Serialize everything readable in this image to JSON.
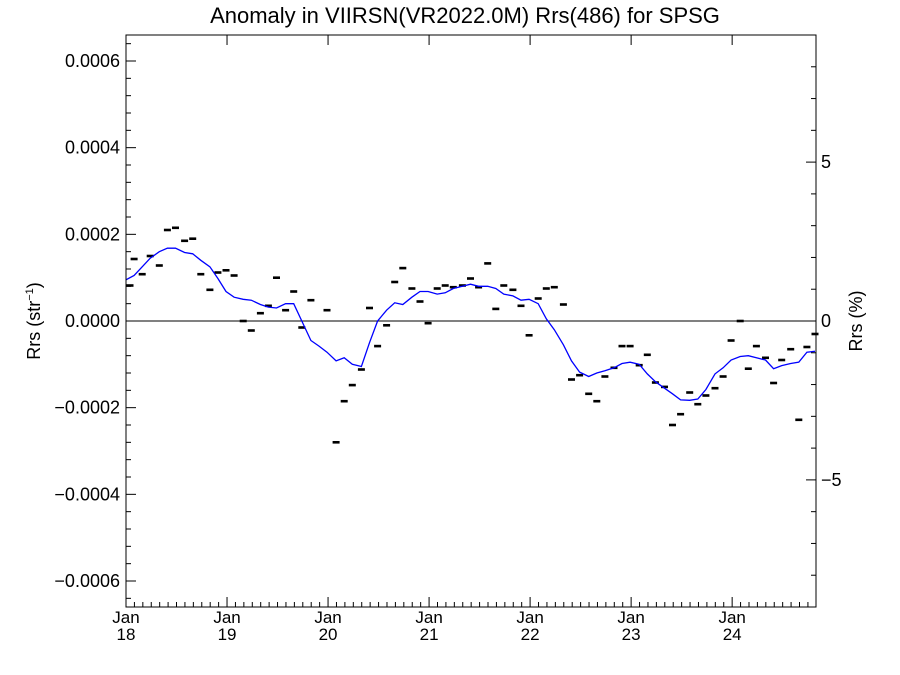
{
  "chart_data": {
    "type": "scatter",
    "title": "Anomaly in VIIRSN(VR2022.0M) Rrs(486) for SPSG",
    "ylabel_main": "Rrs (str",
    "ylabel_sup": "−1",
    "ylabel_close": ")",
    "y2label": "Rrs (%)",
    "ylim": [
      -0.00066,
      0.00066
    ],
    "y2lim": [
      -9.0,
      9.0
    ],
    "xlim": [
      2018.0,
      2024.83
    ],
    "yticks": [
      {
        "value": -0.0006,
        "label": "−0.0006"
      },
      {
        "value": -0.0004,
        "label": "−0.0004"
      },
      {
        "value": -0.0002,
        "label": "−0.0002"
      },
      {
        "value": 0.0,
        "label": "0.0000"
      },
      {
        "value": 0.0002,
        "label": "0.0002"
      },
      {
        "value": 0.0004,
        "label": "0.0004"
      },
      {
        "value": 0.0006,
        "label": "0.0006"
      }
    ],
    "y2ticks": [
      {
        "value": -5,
        "label": "−5"
      },
      {
        "value": 0,
        "label": "0"
      },
      {
        "value": 5,
        "label": "5"
      }
    ],
    "xticks": [
      {
        "value": 2018,
        "month": "Jan",
        "year": "18"
      },
      {
        "value": 2019,
        "month": "Jan",
        "year": "19"
      },
      {
        "value": 2020,
        "month": "Jan",
        "year": "20"
      },
      {
        "value": 2021,
        "month": "Jan",
        "year": "21"
      },
      {
        "value": 2022,
        "month": "Jan",
        "year": "22"
      },
      {
        "value": 2023,
        "month": "Jan",
        "year": "23"
      },
      {
        "value": 2024,
        "month": "Jan",
        "year": "24"
      }
    ],
    "zero_line": 0,
    "series": [
      {
        "kind": "monthly",
        "color": "#000000",
        "points": [
          [
            2018.04,
            8.2e-05
          ],
          [
            2018.08,
            0.000143
          ],
          [
            2018.16,
            0.000108
          ],
          [
            2018.24,
            0.00015
          ],
          [
            2018.33,
            0.000128
          ],
          [
            2018.41,
            0.00021
          ],
          [
            2018.49,
            0.000215
          ],
          [
            2018.58,
            0.000185
          ],
          [
            2018.66,
            0.00019
          ],
          [
            2018.74,
            0.000108
          ],
          [
            2018.83,
            7.2e-05
          ],
          [
            2018.91,
            0.000112
          ],
          [
            2018.99,
            0.000117
          ],
          [
            2019.07,
            0.000105
          ],
          [
            2019.16,
            0.0
          ],
          [
            2019.24,
            -2.2e-05
          ],
          [
            2019.33,
            1.8e-05
          ],
          [
            2019.41,
            3.5e-05
          ],
          [
            2019.49,
            0.0001
          ],
          [
            2019.58,
            2.5e-05
          ],
          [
            2019.66,
            6.8e-05
          ],
          [
            2019.74,
            -1.5e-05
          ],
          [
            2019.83,
            4.8e-05
          ],
          [
            2019.99,
            2.5e-05
          ],
          [
            2020.08,
            -0.00028
          ],
          [
            2020.16,
            -0.000185
          ],
          [
            2020.24,
            -0.000148
          ],
          [
            2020.33,
            -0.000112
          ],
          [
            2020.41,
            3e-05
          ],
          [
            2020.49,
            -5.8e-05
          ],
          [
            2020.58,
            -1e-05
          ],
          [
            2020.66,
            9e-05
          ],
          [
            2020.74,
            0.000122
          ],
          [
            2020.83,
            7.5e-05
          ],
          [
            2020.91,
            4.5e-05
          ],
          [
            2020.99,
            -5e-06
          ],
          [
            2021.08,
            7.5e-05
          ],
          [
            2021.16,
            8.2e-05
          ],
          [
            2021.24,
            7.8e-05
          ],
          [
            2021.33,
            8.2e-05
          ],
          [
            2021.41,
            9.8e-05
          ],
          [
            2021.49,
            7.8e-05
          ],
          [
            2021.58,
            0.000133
          ],
          [
            2021.66,
            2.8e-05
          ],
          [
            2021.74,
            8.2e-05
          ],
          [
            2021.83,
            7.2e-05
          ],
          [
            2021.91,
            3.5e-05
          ],
          [
            2021.99,
            -3.3e-05
          ],
          [
            2022.08,
            5.2e-05
          ],
          [
            2022.16,
            7.5e-05
          ],
          [
            2022.24,
            7.8e-05
          ],
          [
            2022.33,
            3.8e-05
          ],
          [
            2022.41,
            -0.000135
          ],
          [
            2022.49,
            -0.000125
          ],
          [
            2022.58,
            -0.000168
          ],
          [
            2022.66,
            -0.000185
          ],
          [
            2022.74,
            -0.000128
          ],
          [
            2022.83,
            -0.000108
          ],
          [
            2022.91,
            -5.8e-05
          ],
          [
            2022.99,
            -5.8e-05
          ],
          [
            2023.08,
            -0.000102
          ],
          [
            2023.16,
            -7.8e-05
          ],
          [
            2023.24,
            -0.000142
          ],
          [
            2023.33,
            -0.000152
          ],
          [
            2023.41,
            -0.00024
          ],
          [
            2023.49,
            -0.000215
          ],
          [
            2023.58,
            -0.000165
          ],
          [
            2023.66,
            -0.000192
          ],
          [
            2023.74,
            -0.000172
          ],
          [
            2023.83,
            -0.000155
          ],
          [
            2023.91,
            -0.000128
          ],
          [
            2023.99,
            -4.5e-05
          ],
          [
            2024.08,
            0.0
          ],
          [
            2024.16,
            -0.00011
          ],
          [
            2024.24,
            -5.8e-05
          ],
          [
            2024.33,
            -8.5e-05
          ],
          [
            2024.41,
            -0.000143
          ],
          [
            2024.49,
            -9e-05
          ],
          [
            2024.58,
            -6.5e-05
          ],
          [
            2024.66,
            -0.000228
          ],
          [
            2024.74,
            -6e-05
          ],
          [
            2024.82,
            -3e-05
          ]
        ]
      },
      {
        "kind": "running-mean",
        "color": "#0000ff",
        "points": [
          [
            2018.0,
            9.5e-05
          ],
          [
            2018.08,
            0.000105
          ],
          [
            2018.16,
            0.000125
          ],
          [
            2018.24,
            0.000145
          ],
          [
            2018.33,
            0.00016
          ],
          [
            2018.41,
            0.000168
          ],
          [
            2018.49,
            0.000168
          ],
          [
            2018.58,
            0.000158
          ],
          [
            2018.66,
            0.000155
          ],
          [
            2018.74,
            0.00014
          ],
          [
            2018.83,
            0.000125
          ],
          [
            2018.91,
            9.8e-05
          ],
          [
            2018.99,
            6.8e-05
          ],
          [
            2019.07,
            5.5e-05
          ],
          [
            2019.16,
            5e-05
          ],
          [
            2019.24,
            4.8e-05
          ],
          [
            2019.33,
            3.8e-05
          ],
          [
            2019.41,
            3.2e-05
          ],
          [
            2019.49,
            3e-05
          ],
          [
            2019.58,
            4e-05
          ],
          [
            2019.66,
            4e-05
          ],
          [
            2019.74,
            0.0
          ],
          [
            2019.83,
            -4.5e-05
          ],
          [
            2019.91,
            -5.8e-05
          ],
          [
            2019.99,
            -7.2e-05
          ],
          [
            2020.08,
            -9.2e-05
          ],
          [
            2020.16,
            -8.5e-05
          ],
          [
            2020.24,
            -0.0001
          ],
          [
            2020.33,
            -0.000105
          ],
          [
            2020.41,
            -5e-05
          ],
          [
            2020.49,
            0.0
          ],
          [
            2020.58,
            2.5e-05
          ],
          [
            2020.66,
            4.2e-05
          ],
          [
            2020.74,
            3.8e-05
          ],
          [
            2020.83,
            5.5e-05
          ],
          [
            2020.91,
            6.8e-05
          ],
          [
            2020.99,
            6.8e-05
          ],
          [
            2021.08,
            6.2e-05
          ],
          [
            2021.16,
            6.5e-05
          ],
          [
            2021.24,
            7.5e-05
          ],
          [
            2021.33,
            8e-05
          ],
          [
            2021.41,
            8.5e-05
          ],
          [
            2021.49,
            8e-05
          ],
          [
            2021.58,
            8e-05
          ],
          [
            2021.66,
            7.5e-05
          ],
          [
            2021.74,
            6.2e-05
          ],
          [
            2021.83,
            5.8e-05
          ],
          [
            2021.91,
            4.8e-05
          ],
          [
            2021.99,
            5e-05
          ],
          [
            2022.08,
            4e-05
          ],
          [
            2022.16,
            5e-06
          ],
          [
            2022.24,
            -2e-05
          ],
          [
            2022.33,
            -5.5e-05
          ],
          [
            2022.41,
            -9.2e-05
          ],
          [
            2022.49,
            -0.000118
          ],
          [
            2022.58,
            -0.000128
          ],
          [
            2022.66,
            -0.00012
          ],
          [
            2022.74,
            -0.000115
          ],
          [
            2022.83,
            -0.000108
          ],
          [
            2022.91,
            -9.8e-05
          ],
          [
            2022.99,
            -9.5e-05
          ],
          [
            2023.08,
            -0.0001
          ],
          [
            2023.16,
            -0.000122
          ],
          [
            2023.24,
            -0.00014
          ],
          [
            2023.33,
            -0.000155
          ],
          [
            2023.41,
            -0.000168
          ],
          [
            2023.49,
            -0.000182
          ],
          [
            2023.58,
            -0.000183
          ],
          [
            2023.66,
            -0.00018
          ],
          [
            2023.74,
            -0.000158
          ],
          [
            2023.83,
            -0.000122
          ],
          [
            2023.91,
            -0.000108
          ],
          [
            2023.99,
            -9e-05
          ],
          [
            2024.08,
            -8.2e-05
          ],
          [
            2024.16,
            -8e-05
          ],
          [
            2024.24,
            -8.5e-05
          ],
          [
            2024.33,
            -9e-05
          ],
          [
            2024.41,
            -0.00011
          ],
          [
            2024.49,
            -0.000103
          ],
          [
            2024.58,
            -9.8e-05
          ],
          [
            2024.66,
            -9.5e-05
          ],
          [
            2024.74,
            -7.2e-05
          ],
          [
            2024.82,
            -7e-05
          ]
        ]
      }
    ]
  }
}
